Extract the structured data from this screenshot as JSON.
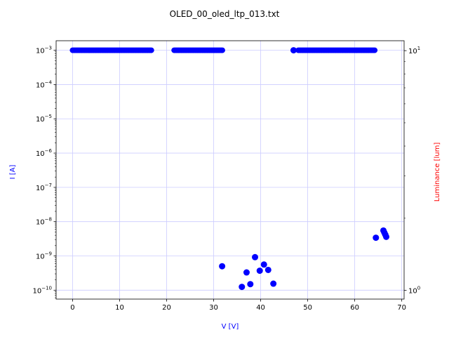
{
  "chart_data": {
    "type": "scatter",
    "title": "OLED_00_oled_ltp_013.txt",
    "xlabel": "V [V]",
    "ylabel_left": "I [A]",
    "ylabel_right": "Luminance [lum]",
    "colors": {
      "xlabel": "#0000ff",
      "ylabel_left": "#0000ff",
      "ylabel_right": "#ff0000",
      "markers": "#0000ff",
      "grid": "#ccccff"
    },
    "grid": true,
    "xlim": [
      -3.5,
      70.5
    ],
    "ylim_left": [
      5.5e-11,
      0.0019
    ],
    "ylim_left_scale": "log",
    "ylim_right": [
      0.92,
      11.0
    ],
    "ylim_right_scale": "log",
    "x_ticks": [
      0,
      10,
      20,
      30,
      40,
      50,
      60,
      70
    ],
    "x_tick_labels": [
      "0",
      "10",
      "20",
      "30",
      "40",
      "50",
      "60",
      "70"
    ],
    "y_left_ticks": [
      {
        "value": 1e-10,
        "base": "10",
        "exp": "−10"
      },
      {
        "value": 1e-09,
        "base": "10",
        "exp": "−9"
      },
      {
        "value": 1e-08,
        "base": "10",
        "exp": "−8"
      },
      {
        "value": 1e-07,
        "base": "10",
        "exp": "−7"
      },
      {
        "value": 1e-06,
        "base": "10",
        "exp": "−6"
      },
      {
        "value": 1e-05,
        "base": "10",
        "exp": "−5"
      },
      {
        "value": 0.0001,
        "base": "10",
        "exp": "−4"
      },
      {
        "value": 0.001,
        "base": "10",
        "exp": "−3"
      }
    ],
    "y_right_ticks": [
      {
        "value": 1,
        "base": "10",
        "exp": "0"
      },
      {
        "value": 10,
        "base": "10",
        "exp": "1"
      }
    ],
    "series": [
      {
        "axis": "left",
        "segments": [
          {
            "x_start": 0.0,
            "x_end": 16.8,
            "y": 0.001
          },
          {
            "x_start": 21.6,
            "x_end": 32.0,
            "y": 0.001
          },
          {
            "x_start": 48.0,
            "x_end": 64.4,
            "y": 0.001
          }
        ],
        "points": [
          {
            "x": 47.0,
            "y": 0.001
          },
          {
            "x": 31.8,
            "y": 5e-10
          },
          {
            "x": 36.0,
            "y": 1.25e-10
          },
          {
            "x": 37.0,
            "y": 3.3e-10
          },
          {
            "x": 37.8,
            "y": 1.5e-10
          },
          {
            "x": 38.8,
            "y": 9.2e-10
          },
          {
            "x": 39.8,
            "y": 3.7e-10
          },
          {
            "x": 40.7,
            "y": 5.6e-10
          },
          {
            "x": 41.6,
            "y": 3.9e-10
          },
          {
            "x": 42.7,
            "y": 1.55e-10
          },
          {
            "x": 64.5,
            "y": 3.4e-09
          },
          {
            "x": 66.1,
            "y": 5.5e-09
          },
          {
            "x": 66.3,
            "y": 4.8e-09
          },
          {
            "x": 66.5,
            "y": 4.2e-09
          },
          {
            "x": 66.7,
            "y": 3.6e-09
          }
        ]
      }
    ]
  }
}
